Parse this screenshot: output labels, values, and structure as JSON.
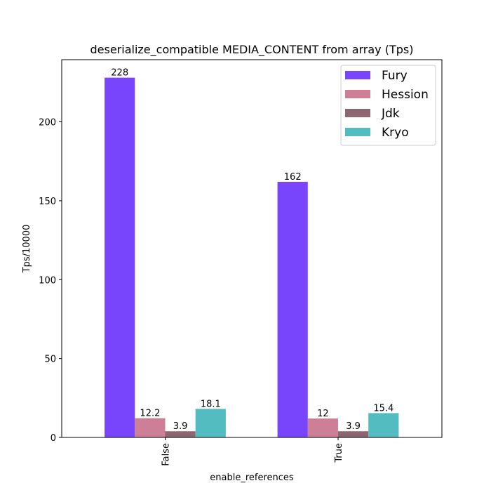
{
  "chart_data": {
    "type": "bar",
    "title": "deserialize_compatible MEDIA_CONTENT from array (Tps)",
    "xlabel": "enable_references",
    "ylabel": "Tps/10000",
    "categories": [
      "False",
      "True"
    ],
    "series": [
      {
        "name": "Fury",
        "values": [
          228,
          162
        ],
        "labels": [
          "228",
          "162"
        ],
        "color": "#7845fc"
      },
      {
        "name": "Hession",
        "values": [
          12.2,
          12
        ],
        "labels": [
          "12.2",
          "12"
        ],
        "color": "#cc7f96"
      },
      {
        "name": "Jdk",
        "values": [
          3.9,
          3.9
        ],
        "labels": [
          "3.9",
          "3.9"
        ],
        "color": "#8c6670"
      },
      {
        "name": "Kryo",
        "values": [
          18.1,
          15.4
        ],
        "labels": [
          "18.1",
          "15.4"
        ],
        "color": "#52bcc0"
      }
    ],
    "ylim": [
      0,
      239.4
    ],
    "yticks": [
      0,
      50,
      100,
      150,
      200
    ],
    "grid": false,
    "legend_position": "top-right"
  }
}
